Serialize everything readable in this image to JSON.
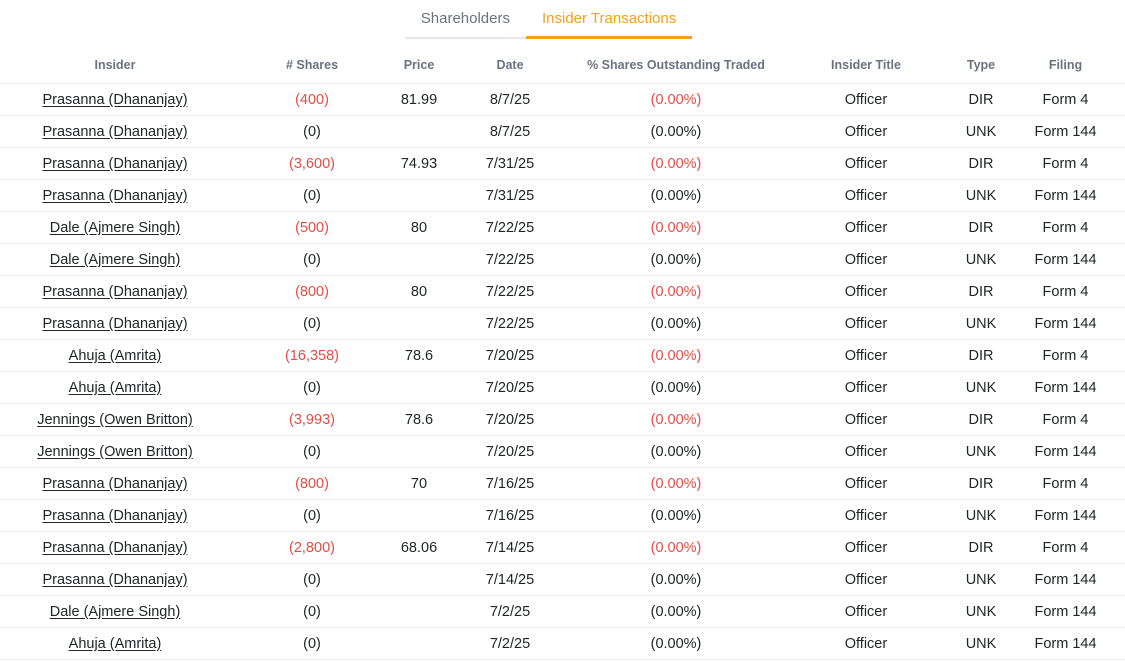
{
  "tabs": [
    {
      "label": "Shareholders",
      "active": false
    },
    {
      "label": "Insider Transactions",
      "active": true
    }
  ],
  "table": {
    "columns": [
      "Insider",
      "# Shares",
      "Price",
      "Date",
      "% Shares Outstanding Traded",
      "Insider Title",
      "Type",
      "Filing"
    ],
    "rows": [
      {
        "insider": "Prasanna (Dhananjay)",
        "shares": "(400)",
        "price": "81.99",
        "date": "8/7/25",
        "pct": "(0.00%)",
        "title": "Officer",
        "type": "DIR",
        "filing": "Form 4",
        "negative": true
      },
      {
        "insider": "Prasanna (Dhananjay)",
        "shares": "(0)",
        "price": "",
        "date": "8/7/25",
        "pct": "(0.00%)",
        "title": "Officer",
        "type": "UNK",
        "filing": "Form 144",
        "negative": false
      },
      {
        "insider": "Prasanna (Dhananjay)",
        "shares": "(3,600)",
        "price": "74.93",
        "date": "7/31/25",
        "pct": "(0.00%)",
        "title": "Officer",
        "type": "DIR",
        "filing": "Form 4",
        "negative": true
      },
      {
        "insider": "Prasanna (Dhananjay)",
        "shares": "(0)",
        "price": "",
        "date": "7/31/25",
        "pct": "(0.00%)",
        "title": "Officer",
        "type": "UNK",
        "filing": "Form 144",
        "negative": false
      },
      {
        "insider": "Dale (Ajmere Singh)",
        "shares": "(500)",
        "price": "80",
        "date": "7/22/25",
        "pct": "(0.00%)",
        "title": "Officer",
        "type": "DIR",
        "filing": "Form 4",
        "negative": true
      },
      {
        "insider": "Dale (Ajmere Singh)",
        "shares": "(0)",
        "price": "",
        "date": "7/22/25",
        "pct": "(0.00%)",
        "title": "Officer",
        "type": "UNK",
        "filing": "Form 144",
        "negative": false
      },
      {
        "insider": "Prasanna (Dhananjay)",
        "shares": "(800)",
        "price": "80",
        "date": "7/22/25",
        "pct": "(0.00%)",
        "title": "Officer",
        "type": "DIR",
        "filing": "Form 4",
        "negative": true
      },
      {
        "insider": "Prasanna (Dhananjay)",
        "shares": "(0)",
        "price": "",
        "date": "7/22/25",
        "pct": "(0.00%)",
        "title": "Officer",
        "type": "UNK",
        "filing": "Form 144",
        "negative": false
      },
      {
        "insider": "Ahuja (Amrita)",
        "shares": "(16,358)",
        "price": "78.6",
        "date": "7/20/25",
        "pct": "(0.00%)",
        "title": "Officer",
        "type": "DIR",
        "filing": "Form 4",
        "negative": true
      },
      {
        "insider": "Ahuja (Amrita)",
        "shares": "(0)",
        "price": "",
        "date": "7/20/25",
        "pct": "(0.00%)",
        "title": "Officer",
        "type": "UNK",
        "filing": "Form 144",
        "negative": false
      },
      {
        "insider": "Jennings (Owen Britton)",
        "shares": "(3,993)",
        "price": "78.6",
        "date": "7/20/25",
        "pct": "(0.00%)",
        "title": "Officer",
        "type": "DIR",
        "filing": "Form 4",
        "negative": true
      },
      {
        "insider": "Jennings (Owen Britton)",
        "shares": "(0)",
        "price": "",
        "date": "7/20/25",
        "pct": "(0.00%)",
        "title": "Officer",
        "type": "UNK",
        "filing": "Form 144",
        "negative": false
      },
      {
        "insider": "Prasanna (Dhananjay)",
        "shares": "(800)",
        "price": "70",
        "date": "7/16/25",
        "pct": "(0.00%)",
        "title": "Officer",
        "type": "DIR",
        "filing": "Form 4",
        "negative": true
      },
      {
        "insider": "Prasanna (Dhananjay)",
        "shares": "(0)",
        "price": "",
        "date": "7/16/25",
        "pct": "(0.00%)",
        "title": "Officer",
        "type": "UNK",
        "filing": "Form 144",
        "negative": false
      },
      {
        "insider": "Prasanna (Dhananjay)",
        "shares": "(2,800)",
        "price": "68.06",
        "date": "7/14/25",
        "pct": "(0.00%)",
        "title": "Officer",
        "type": "DIR",
        "filing": "Form 4",
        "negative": true
      },
      {
        "insider": "Prasanna (Dhananjay)",
        "shares": "(0)",
        "price": "",
        "date": "7/14/25",
        "pct": "(0.00%)",
        "title": "Officer",
        "type": "UNK",
        "filing": "Form 144",
        "negative": false
      },
      {
        "insider": "Dale (Ajmere Singh)",
        "shares": "(0)",
        "price": "",
        "date": "7/2/25",
        "pct": "(0.00%)",
        "title": "Officer",
        "type": "UNK",
        "filing": "Form 144",
        "negative": false
      },
      {
        "insider": "Ahuja (Amrita)",
        "shares": "(0)",
        "price": "",
        "date": "7/2/25",
        "pct": "(0.00%)",
        "title": "Officer",
        "type": "UNK",
        "filing": "Form 144",
        "negative": false
      }
    ]
  },
  "colors": {
    "accent_orange": "#f59f1f",
    "negative_red": "#e74c44",
    "header_text_gray": "#6b7280",
    "body_text": "#212529",
    "row_border": "#ebebeb"
  }
}
